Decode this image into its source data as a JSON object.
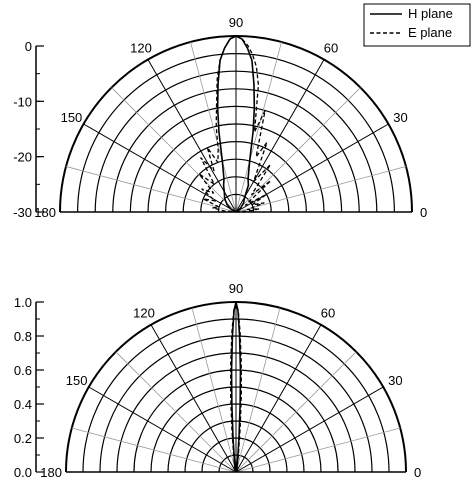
{
  "chart_data": [
    {
      "type": "polar-line",
      "subplot": "top",
      "unit_note": "dB",
      "angle_ticks": [
        "0",
        "30",
        "60",
        "90",
        "120",
        "150",
        "180"
      ],
      "radial_ticks": [
        "0",
        "-10",
        "-20",
        "-30"
      ],
      "rlim": [
        -30,
        0
      ],
      "radial_rings": [
        -30,
        -27,
        -24,
        -21,
        -18,
        -15,
        -12,
        -9,
        -6,
        -3,
        0
      ],
      "grid": true,
      "legend": {
        "placement": "top-right",
        "entries": [
          "H plane",
          "E plane"
        ]
      },
      "series": [
        {
          "name": "H plane",
          "style": "solid",
          "points": [
            [
              0,
              -30
            ],
            [
              10,
              -30
            ],
            [
              20,
              -30
            ],
            [
              30,
              -30
            ],
            [
              40,
              -29
            ],
            [
              50,
              -28
            ],
            [
              60,
              -27
            ],
            [
              65,
              -25
            ],
            [
              70,
              -24
            ],
            [
              75,
              -21
            ],
            [
              78,
              -16
            ],
            [
              80,
              -12
            ],
            [
              82,
              -8
            ],
            [
              84,
              -4
            ],
            [
              86,
              -2
            ],
            [
              88,
              -0.5
            ],
            [
              90,
              0
            ],
            [
              92,
              -0.5
            ],
            [
              94,
              -2
            ],
            [
              96,
              -4
            ],
            [
              98,
              -8
            ],
            [
              100,
              -12
            ],
            [
              102,
              -16
            ],
            [
              105,
              -21
            ],
            [
              110,
              -24
            ],
            [
              115,
              -25
            ],
            [
              120,
              -26
            ],
            [
              130,
              -27
            ],
            [
              140,
              -28
            ],
            [
              150,
              -29
            ],
            [
              160,
              -30
            ],
            [
              170,
              -30
            ],
            [
              180,
              -30
            ]
          ]
        },
        {
          "name": "E plane",
          "style": "dashed",
          "points": [
            [
              0,
              -30
            ],
            [
              5,
              -27
            ],
            [
              8,
              -26
            ],
            [
              12,
              -28
            ],
            [
              18,
              -25
            ],
            [
              24,
              -27
            ],
            [
              30,
              -24
            ],
            [
              36,
              -28
            ],
            [
              42,
              -22
            ],
            [
              48,
              -26
            ],
            [
              54,
              -20
            ],
            [
              60,
              -24
            ],
            [
              66,
              -17
            ],
            [
              70,
              -20
            ],
            [
              74,
              -12
            ],
            [
              77,
              -16
            ],
            [
              80,
              -8
            ],
            [
              82,
              -5
            ],
            [
              84,
              -3
            ],
            [
              86,
              -1.5
            ],
            [
              88,
              -0.5
            ],
            [
              90,
              0
            ],
            [
              92,
              -0.5
            ],
            [
              94,
              -2
            ],
            [
              96,
              -4
            ],
            [
              98,
              -7
            ],
            [
              100,
              -11
            ],
            [
              103,
              -15
            ],
            [
              106,
              -19
            ],
            [
              110,
              -21
            ],
            [
              114,
              -18
            ],
            [
              118,
              -22
            ],
            [
              123,
              -19
            ],
            [
              128,
              -24
            ],
            [
              134,
              -21
            ],
            [
              140,
              -25
            ],
            [
              146,
              -23
            ],
            [
              152,
              -26
            ],
            [
              158,
              -24
            ],
            [
              164,
              -27
            ],
            [
              170,
              -26
            ],
            [
              175,
              -28
            ],
            [
              180,
              -30
            ]
          ]
        }
      ]
    },
    {
      "type": "polar-line",
      "subplot": "bottom",
      "unit_note": "linear",
      "angle_ticks": [
        "0",
        "30",
        "60",
        "90",
        "120",
        "150",
        "180"
      ],
      "radial_ticks": [
        "0.0",
        "0.2",
        "0.4",
        "0.6",
        "0.8",
        "1.0"
      ],
      "rlim": [
        0,
        1
      ],
      "radial_rings": [
        0.1,
        0.2,
        0.3,
        0.4,
        0.5,
        0.6,
        0.7,
        0.8,
        0.9,
        1.0
      ],
      "grid": true,
      "series": [
        {
          "name": "H plane",
          "style": "solid",
          "points": [
            [
              0,
              0
            ],
            [
              60,
              0.01
            ],
            [
              75,
              0.02
            ],
            [
              80,
              0.04
            ],
            [
              83,
              0.08
            ],
            [
              85,
              0.2
            ],
            [
              86.5,
              0.4
            ],
            [
              87.5,
              0.6
            ],
            [
              88.5,
              0.8
            ],
            [
              89.3,
              0.95
            ],
            [
              90,
              1.0
            ],
            [
              90.7,
              0.95
            ],
            [
              91.5,
              0.8
            ],
            [
              92.5,
              0.6
            ],
            [
              93.5,
              0.4
            ],
            [
              95,
              0.2
            ],
            [
              97,
              0.08
            ],
            [
              100,
              0.04
            ],
            [
              105,
              0.02
            ],
            [
              120,
              0.01
            ],
            [
              180,
              0
            ]
          ]
        },
        {
          "name": "E plane",
          "style": "dashed",
          "points": [
            [
              0,
              0
            ],
            [
              50,
              0.01
            ],
            [
              70,
              0.02
            ],
            [
              78,
              0.04
            ],
            [
              82,
              0.1
            ],
            [
              84.5,
              0.25
            ],
            [
              86,
              0.45
            ],
            [
              87.3,
              0.65
            ],
            [
              88.3,
              0.82
            ],
            [
              89.2,
              0.95
            ],
            [
              90,
              0.99
            ],
            [
              90.8,
              0.95
            ],
            [
              91.7,
              0.82
            ],
            [
              92.7,
              0.65
            ],
            [
              94,
              0.45
            ],
            [
              95.5,
              0.25
            ],
            [
              98,
              0.1
            ],
            [
              102,
              0.04
            ],
            [
              110,
              0.02
            ],
            [
              130,
              0.01
            ],
            [
              180,
              0
            ]
          ]
        }
      ]
    }
  ]
}
